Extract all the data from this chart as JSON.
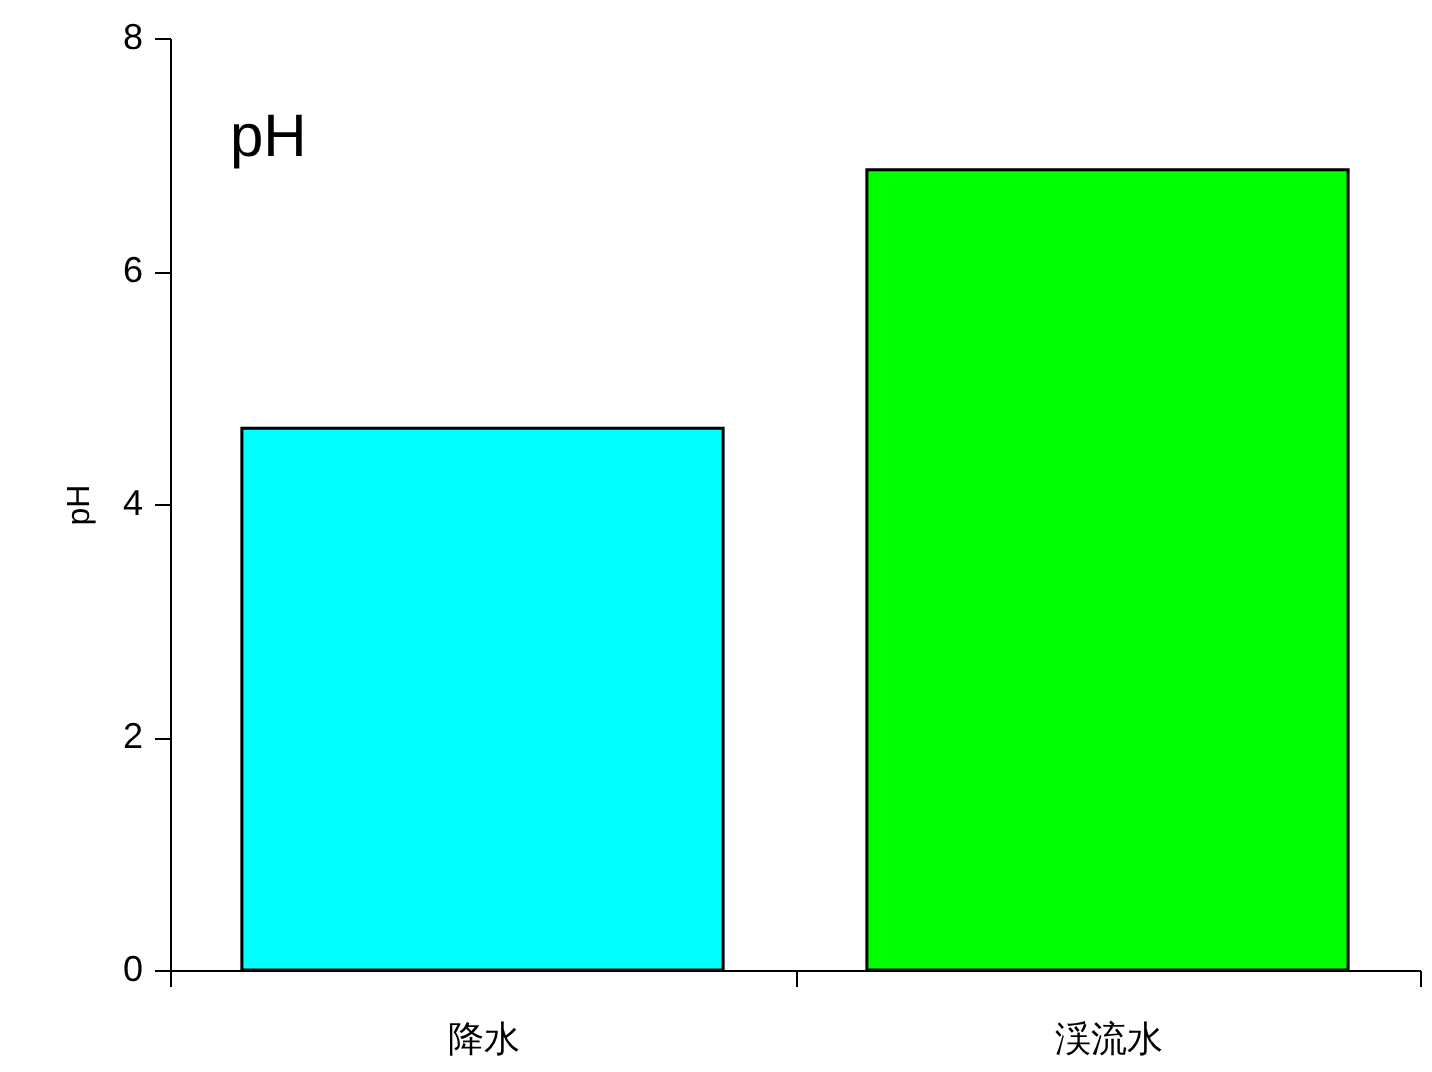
{
  "chart_data": {
    "type": "bar",
    "title": "pH",
    "ylabel": "pH",
    "categories": [
      "降水",
      "渓流水"
    ],
    "values": [
      4.65,
      6.87
    ],
    "colors": [
      "#00ffff",
      "#00ff00"
    ],
    "ylim": [
      0,
      8
    ],
    "yticks": [
      0,
      2,
      4,
      6,
      8
    ],
    "grid": false
  }
}
